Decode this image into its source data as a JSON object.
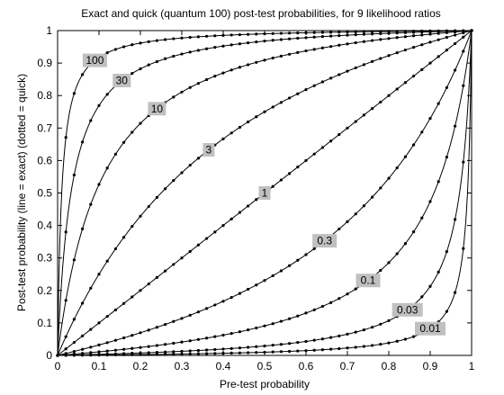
{
  "chart_data": {
    "type": "line",
    "title": "Exact and quick (quantum 100) post-test probabilities, for 9 likelihood ratios",
    "xlabel": "Pre-test probability",
    "ylabel": "Post-test probability (line = exact) (dotted = quick)",
    "xlim": [
      0,
      1
    ],
    "ylim": [
      0,
      1
    ],
    "x_ticks": [
      "0",
      "0.1",
      "0.2",
      "0.3",
      "0.4",
      "0.5",
      "0.6",
      "0.7",
      "0.8",
      "0.9",
      "1"
    ],
    "y_ticks": [
      "0",
      "0.1",
      "0.2",
      "0.3",
      "0.4",
      "0.5",
      "0.6",
      "0.7",
      "0.8",
      "0.9",
      "1"
    ],
    "grid": false,
    "colors": {
      "line": "#000000",
      "label_bg": "#c0c0c0",
      "axes": "#000000"
    },
    "likelihood_ratios": [
      {
        "label": "100",
        "lr": 100,
        "label_at_x": 0.09
      },
      {
        "label": "30",
        "lr": 30,
        "label_at_x": 0.155
      },
      {
        "label": "10",
        "lr": 10,
        "label_at_x": 0.24
      },
      {
        "label": "3",
        "lr": 3,
        "label_at_x": 0.365
      },
      {
        "label": "1",
        "lr": 1,
        "label_at_x": 0.5
      },
      {
        "label": "0.3",
        "lr": 0.3,
        "label_at_x": 0.645
      },
      {
        "label": "0.1",
        "lr": 0.1,
        "label_at_x": 0.75
      },
      {
        "label": "0.03",
        "lr": 0.03,
        "label_at_x": 0.845
      },
      {
        "label": "0.01",
        "lr": 0.01,
        "label_at_x": 0.9
      }
    ]
  }
}
